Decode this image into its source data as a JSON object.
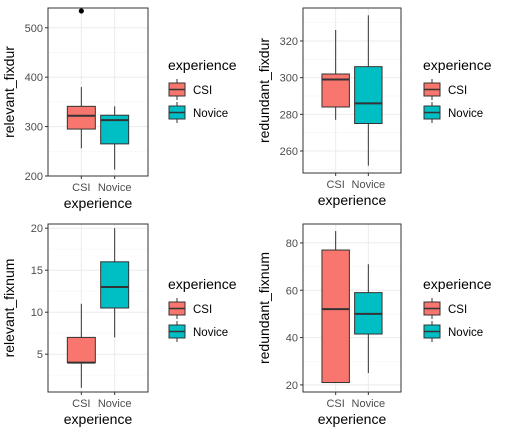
{
  "colors": {
    "CSI": "#F8766D",
    "Novice": "#00BFC4",
    "panel_bg": "#ffffff",
    "grid_major": "#ebebeb",
    "grid_minor": "#f5f5f5",
    "panel_border": "#333333"
  },
  "chart_data": [
    {
      "type": "boxplot",
      "xlabel": "experience",
      "ylabel": "relevant_fixdur",
      "categories": [
        "CSI",
        "Novice"
      ],
      "ylim": [
        200,
        540
      ],
      "yticks": [
        200,
        300,
        400,
        500
      ],
      "grid": true,
      "legend": {
        "title": "experience",
        "entries": [
          "CSI",
          "Novice"
        ],
        "position": "right"
      },
      "boxes": [
        {
          "category": "CSI",
          "min": 256,
          "q1": 295,
          "median": 322,
          "q3": 341,
          "max": 380,
          "outliers": [
            534
          ]
        },
        {
          "category": "Novice",
          "min": 213,
          "q1": 265,
          "median": 313,
          "q3": 323,
          "max": 341,
          "outliers": []
        }
      ]
    },
    {
      "type": "boxplot",
      "xlabel": "experience",
      "ylabel": "redundant_fixdur",
      "categories": [
        "CSI",
        "Novice"
      ],
      "ylim": [
        248,
        338
      ],
      "yticks": [
        260,
        280,
        300,
        320
      ],
      "grid": true,
      "legend": {
        "title": "experience",
        "entries": [
          "CSI",
          "Novice"
        ],
        "position": "right"
      },
      "boxes": [
        {
          "category": "CSI",
          "min": 277,
          "q1": 284,
          "median": 299,
          "q3": 302,
          "max": 326,
          "outliers": []
        },
        {
          "category": "Novice",
          "min": 252,
          "q1": 275,
          "median": 286,
          "q3": 306,
          "max": 334,
          "outliers": []
        }
      ]
    },
    {
      "type": "boxplot",
      "xlabel": "experience",
      "ylabel": "relevant_fixnum",
      "categories": [
        "CSI",
        "Novice"
      ],
      "ylim": [
        0.5,
        20.5
      ],
      "yticks": [
        5,
        10,
        15,
        20
      ],
      "grid": true,
      "legend": {
        "title": "experience",
        "entries": [
          "CSI",
          "Novice"
        ],
        "position": "right"
      },
      "boxes": [
        {
          "category": "CSI",
          "min": 1,
          "q1": 4,
          "median": 4,
          "q3": 7,
          "max": 11,
          "outliers": []
        },
        {
          "category": "Novice",
          "min": 7,
          "q1": 10.5,
          "median": 13,
          "q3": 16,
          "max": 20,
          "outliers": []
        }
      ]
    },
    {
      "type": "boxplot",
      "xlabel": "experience",
      "ylabel": "redundant_fixnum",
      "categories": [
        "CSI",
        "Novice"
      ],
      "ylim": [
        17,
        88
      ],
      "yticks": [
        20,
        40,
        60,
        80
      ],
      "grid": true,
      "legend": {
        "title": "experience",
        "entries": [
          "CSI",
          "Novice"
        ],
        "position": "right"
      },
      "boxes": [
        {
          "category": "CSI",
          "min": 21,
          "q1": 21,
          "median": 52,
          "q3": 77,
          "max": 85,
          "outliers": []
        },
        {
          "category": "Novice",
          "min": 25,
          "q1": 41.5,
          "median": 50,
          "q3": 59,
          "max": 71,
          "outliers": []
        }
      ]
    }
  ]
}
